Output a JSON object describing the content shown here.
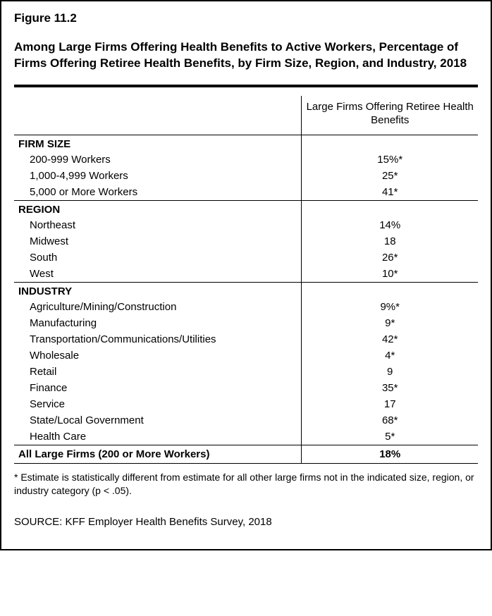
{
  "figure_number": "Figure 11.2",
  "title": "Among Large Firms Offering Health Benefits to Active Workers, Percentage of Firms Offering Retiree Health Benefits, by Firm Size, Region, and Industry, 2018",
  "column_header": "Large Firms Offering Retiree Health Benefits",
  "sections": [
    {
      "label": "FIRM SIZE",
      "rows": [
        {
          "label": "200-999 Workers",
          "value": "15%*"
        },
        {
          "label": "1,000-4,999 Workers",
          "value": "25*"
        },
        {
          "label": "5,000 or More Workers",
          "value": "41*"
        }
      ]
    },
    {
      "label": "REGION",
      "rows": [
        {
          "label": "Northeast",
          "value": "14%"
        },
        {
          "label": "Midwest",
          "value": "18"
        },
        {
          "label": "South",
          "value": "26*"
        },
        {
          "label": "West",
          "value": "10*"
        }
      ]
    },
    {
      "label": "INDUSTRY",
      "rows": [
        {
          "label": "Agriculture/Mining/Construction",
          "value": "9%*"
        },
        {
          "label": "Manufacturing",
          "value": "9*"
        },
        {
          "label": "Transportation/Communications/Utilities",
          "value": "42*"
        },
        {
          "label": "Wholesale",
          "value": "4*"
        },
        {
          "label": "Retail",
          "value": "9"
        },
        {
          "label": "Finance",
          "value": "35*"
        },
        {
          "label": "Service",
          "value": "17"
        },
        {
          "label": "State/Local Government",
          "value": "68*"
        },
        {
          "label": "Health Care",
          "value": "5*"
        }
      ]
    }
  ],
  "summary": {
    "label": "All Large Firms (200 or More Workers)",
    "value": "18%"
  },
  "footnote": "* Estimate is statistically different from estimate for all other large firms not in the indicated size, region, or industry category (p < .05).",
  "source": "SOURCE: KFF Employer Health Benefits Survey, 2018"
}
